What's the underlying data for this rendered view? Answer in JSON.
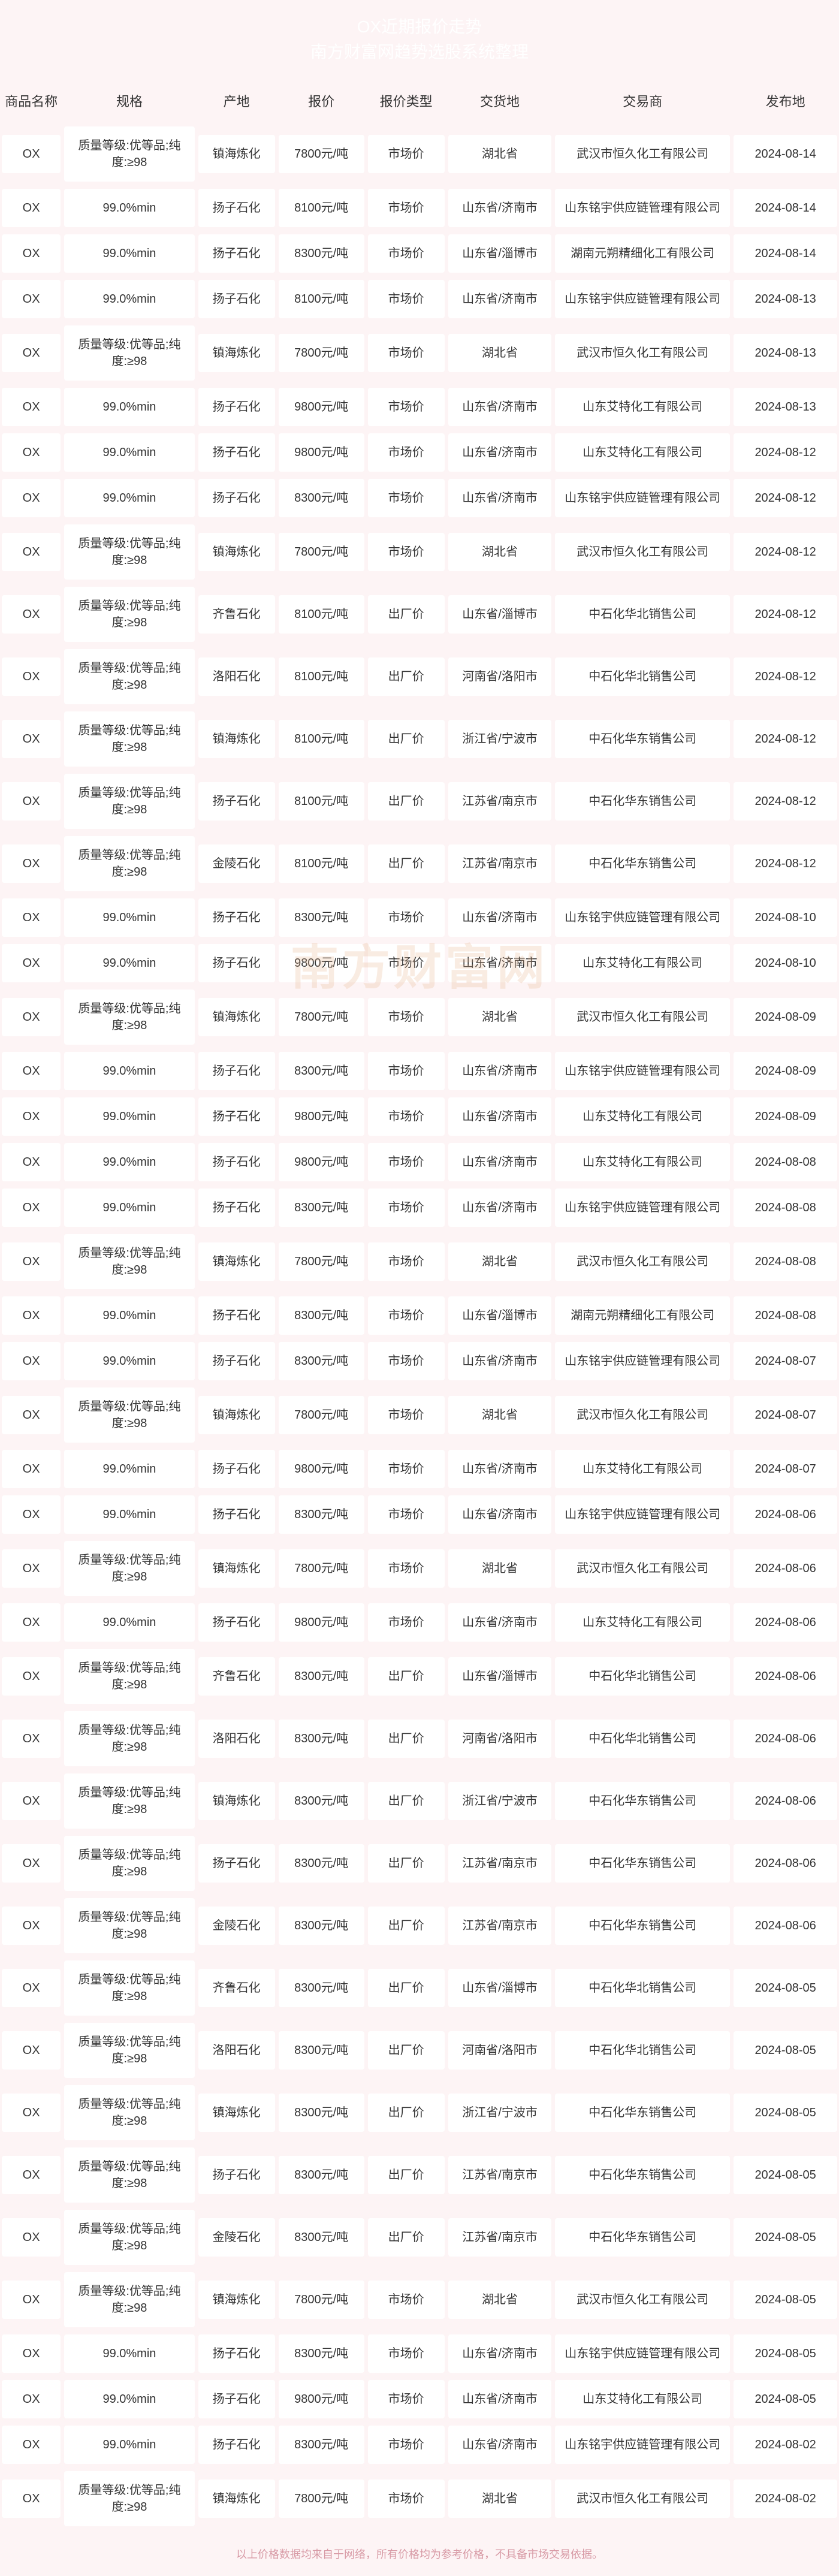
{
  "header": {
    "title1": "OX近期报价走势",
    "title2": "南方财富网趋势选股系统整理"
  },
  "watermark": "南方财富网",
  "footer": "以上价格数据均来自于网络，所有价格均为参考价格，不具备市场交易依据。",
  "columns": [
    "商品名称",
    "规格",
    "产地",
    "报价",
    "报价类型",
    "交货地",
    "交易商",
    "发布地"
  ],
  "colors": {
    "page_bg": "#fdf4f5",
    "cell_bg": "#ffffff",
    "header_text": "#ffffff",
    "body_text": "#333333",
    "footer_text": "#d89aa5"
  },
  "rows": [
    [
      "OX",
      "质量等级:优等品;纯度:≥98",
      "镇海炼化",
      "7800元/吨",
      "市场价",
      "湖北省",
      "武汉市恒久化工有限公司",
      "2024-08-14"
    ],
    [
      "OX",
      "99.0%min",
      "扬子石化",
      "8100元/吨",
      "市场价",
      "山东省/济南市",
      "山东铭宇供应链管理有限公司",
      "2024-08-14"
    ],
    [
      "OX",
      "99.0%min",
      "扬子石化",
      "8300元/吨",
      "市场价",
      "山东省/淄博市",
      "湖南元朔精细化工有限公司",
      "2024-08-14"
    ],
    [
      "OX",
      "99.0%min",
      "扬子石化",
      "8100元/吨",
      "市场价",
      "山东省/济南市",
      "山东铭宇供应链管理有限公司",
      "2024-08-13"
    ],
    [
      "OX",
      "质量等级:优等品;纯度:≥98",
      "镇海炼化",
      "7800元/吨",
      "市场价",
      "湖北省",
      "武汉市恒久化工有限公司",
      "2024-08-13"
    ],
    [
      "OX",
      "99.0%min",
      "扬子石化",
      "9800元/吨",
      "市场价",
      "山东省/济南市",
      "山东艾特化工有限公司",
      "2024-08-13"
    ],
    [
      "OX",
      "99.0%min",
      "扬子石化",
      "9800元/吨",
      "市场价",
      "山东省/济南市",
      "山东艾特化工有限公司",
      "2024-08-12"
    ],
    [
      "OX",
      "99.0%min",
      "扬子石化",
      "8300元/吨",
      "市场价",
      "山东省/济南市",
      "山东铭宇供应链管理有限公司",
      "2024-08-12"
    ],
    [
      "OX",
      "质量等级:优等品;纯度:≥98",
      "镇海炼化",
      "7800元/吨",
      "市场价",
      "湖北省",
      "武汉市恒久化工有限公司",
      "2024-08-12"
    ],
    [
      "OX",
      "质量等级:优等品;纯度:≥98",
      "齐鲁石化",
      "8100元/吨",
      "出厂价",
      "山东省/淄博市",
      "中石化华北销售公司",
      "2024-08-12"
    ],
    [
      "OX",
      "质量等级:优等品;纯度:≥98",
      "洛阳石化",
      "8100元/吨",
      "出厂价",
      "河南省/洛阳市",
      "中石化华北销售公司",
      "2024-08-12"
    ],
    [
      "OX",
      "质量等级:优等品;纯度:≥98",
      "镇海炼化",
      "8100元/吨",
      "出厂价",
      "浙江省/宁波市",
      "中石化华东销售公司",
      "2024-08-12"
    ],
    [
      "OX",
      "质量等级:优等品;纯度:≥98",
      "扬子石化",
      "8100元/吨",
      "出厂价",
      "江苏省/南京市",
      "中石化华东销售公司",
      "2024-08-12"
    ],
    [
      "OX",
      "质量等级:优等品;纯度:≥98",
      "金陵石化",
      "8100元/吨",
      "出厂价",
      "江苏省/南京市",
      "中石化华东销售公司",
      "2024-08-12"
    ],
    [
      "OX",
      "99.0%min",
      "扬子石化",
      "8300元/吨",
      "市场价",
      "山东省/济南市",
      "山东铭宇供应链管理有限公司",
      "2024-08-10"
    ],
    [
      "OX",
      "99.0%min",
      "扬子石化",
      "9800元/吨",
      "市场价",
      "山东省/济南市",
      "山东艾特化工有限公司",
      "2024-08-10"
    ],
    [
      "OX",
      "质量等级:优等品;纯度:≥98",
      "镇海炼化",
      "7800元/吨",
      "市场价",
      "湖北省",
      "武汉市恒久化工有限公司",
      "2024-08-09"
    ],
    [
      "OX",
      "99.0%min",
      "扬子石化",
      "8300元/吨",
      "市场价",
      "山东省/济南市",
      "山东铭宇供应链管理有限公司",
      "2024-08-09"
    ],
    [
      "OX",
      "99.0%min",
      "扬子石化",
      "9800元/吨",
      "市场价",
      "山东省/济南市",
      "山东艾特化工有限公司",
      "2024-08-09"
    ],
    [
      "OX",
      "99.0%min",
      "扬子石化",
      "9800元/吨",
      "市场价",
      "山东省/济南市",
      "山东艾特化工有限公司",
      "2024-08-08"
    ],
    [
      "OX",
      "99.0%min",
      "扬子石化",
      "8300元/吨",
      "市场价",
      "山东省/济南市",
      "山东铭宇供应链管理有限公司",
      "2024-08-08"
    ],
    [
      "OX",
      "质量等级:优等品;纯度:≥98",
      "镇海炼化",
      "7800元/吨",
      "市场价",
      "湖北省",
      "武汉市恒久化工有限公司",
      "2024-08-08"
    ],
    [
      "OX",
      "99.0%min",
      "扬子石化",
      "8300元/吨",
      "市场价",
      "山东省/淄博市",
      "湖南元朔精细化工有限公司",
      "2024-08-08"
    ],
    [
      "OX",
      "99.0%min",
      "扬子石化",
      "8300元/吨",
      "市场价",
      "山东省/济南市",
      "山东铭宇供应链管理有限公司",
      "2024-08-07"
    ],
    [
      "OX",
      "质量等级:优等品;纯度:≥98",
      "镇海炼化",
      "7800元/吨",
      "市场价",
      "湖北省",
      "武汉市恒久化工有限公司",
      "2024-08-07"
    ],
    [
      "OX",
      "99.0%min",
      "扬子石化",
      "9800元/吨",
      "市场价",
      "山东省/济南市",
      "山东艾特化工有限公司",
      "2024-08-07"
    ],
    [
      "OX",
      "99.0%min",
      "扬子石化",
      "8300元/吨",
      "市场价",
      "山东省/济南市",
      "山东铭宇供应链管理有限公司",
      "2024-08-06"
    ],
    [
      "OX",
      "质量等级:优等品;纯度:≥98",
      "镇海炼化",
      "7800元/吨",
      "市场价",
      "湖北省",
      "武汉市恒久化工有限公司",
      "2024-08-06"
    ],
    [
      "OX",
      "99.0%min",
      "扬子石化",
      "9800元/吨",
      "市场价",
      "山东省/济南市",
      "山东艾特化工有限公司",
      "2024-08-06"
    ],
    [
      "OX",
      "质量等级:优等品;纯度:≥98",
      "齐鲁石化",
      "8300元/吨",
      "出厂价",
      "山东省/淄博市",
      "中石化华北销售公司",
      "2024-08-06"
    ],
    [
      "OX",
      "质量等级:优等品;纯度:≥98",
      "洛阳石化",
      "8300元/吨",
      "出厂价",
      "河南省/洛阳市",
      "中石化华北销售公司",
      "2024-08-06"
    ],
    [
      "OX",
      "质量等级:优等品;纯度:≥98",
      "镇海炼化",
      "8300元/吨",
      "出厂价",
      "浙江省/宁波市",
      "中石化华东销售公司",
      "2024-08-06"
    ],
    [
      "OX",
      "质量等级:优等品;纯度:≥98",
      "扬子石化",
      "8300元/吨",
      "出厂价",
      "江苏省/南京市",
      "中石化华东销售公司",
      "2024-08-06"
    ],
    [
      "OX",
      "质量等级:优等品;纯度:≥98",
      "金陵石化",
      "8300元/吨",
      "出厂价",
      "江苏省/南京市",
      "中石化华东销售公司",
      "2024-08-06"
    ],
    [
      "OX",
      "质量等级:优等品;纯度:≥98",
      "齐鲁石化",
      "8300元/吨",
      "出厂价",
      "山东省/淄博市",
      "中石化华北销售公司",
      "2024-08-05"
    ],
    [
      "OX",
      "质量等级:优等品;纯度:≥98",
      "洛阳石化",
      "8300元/吨",
      "出厂价",
      "河南省/洛阳市",
      "中石化华北销售公司",
      "2024-08-05"
    ],
    [
      "OX",
      "质量等级:优等品;纯度:≥98",
      "镇海炼化",
      "8300元/吨",
      "出厂价",
      "浙江省/宁波市",
      "中石化华东销售公司",
      "2024-08-05"
    ],
    [
      "OX",
      "质量等级:优等品;纯度:≥98",
      "扬子石化",
      "8300元/吨",
      "出厂价",
      "江苏省/南京市",
      "中石化华东销售公司",
      "2024-08-05"
    ],
    [
      "OX",
      "质量等级:优等品;纯度:≥98",
      "金陵石化",
      "8300元/吨",
      "出厂价",
      "江苏省/南京市",
      "中石化华东销售公司",
      "2024-08-05"
    ],
    [
      "OX",
      "质量等级:优等品;纯度:≥98",
      "镇海炼化",
      "7800元/吨",
      "市场价",
      "湖北省",
      "武汉市恒久化工有限公司",
      "2024-08-05"
    ],
    [
      "OX",
      "99.0%min",
      "扬子石化",
      "8300元/吨",
      "市场价",
      "山东省/济南市",
      "山东铭宇供应链管理有限公司",
      "2024-08-05"
    ],
    [
      "OX",
      "99.0%min",
      "扬子石化",
      "9800元/吨",
      "市场价",
      "山东省/济南市",
      "山东艾特化工有限公司",
      "2024-08-05"
    ],
    [
      "OX",
      "99.0%min",
      "扬子石化",
      "8300元/吨",
      "市场价",
      "山东省/济南市",
      "山东铭宇供应链管理有限公司",
      "2024-08-02"
    ],
    [
      "OX",
      "质量等级:优等品;纯度:≥98",
      "镇海炼化",
      "7800元/吨",
      "市场价",
      "湖北省",
      "武汉市恒久化工有限公司",
      "2024-08-02"
    ]
  ]
}
